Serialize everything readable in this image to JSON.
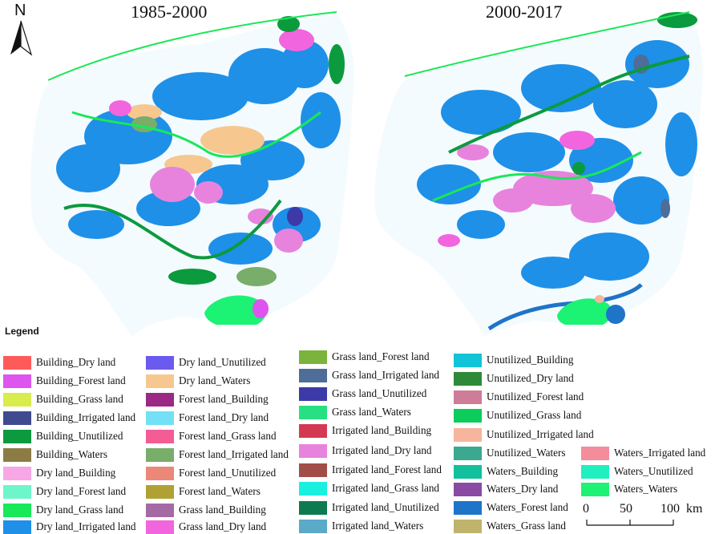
{
  "titles": {
    "left": "1985-2000",
    "right": "2000-2017"
  },
  "north": "N",
  "legend": {
    "title": "Legend",
    "items": [
      {
        "label": "Building_Dry land",
        "color": "#ff5a5a"
      },
      {
        "label": "Building_Forest land",
        "color": "#dd55ee"
      },
      {
        "label": "Building_Grass land",
        "color": "#d8ec4c"
      },
      {
        "label": "Building_Irrigated land",
        "color": "#3f4a8f"
      },
      {
        "label": "Building_Unutilized",
        "color": "#0c9a3e"
      },
      {
        "label": "Building_Waters",
        "color": "#8c7c44"
      },
      {
        "label": "Dry land_Building",
        "color": "#f7a7e4"
      },
      {
        "label": "Dry land_Forest land",
        "color": "#6ef5c9"
      },
      {
        "label": "Dry land_Grass land",
        "color": "#19e858"
      },
      {
        "label": "Dry land_Irrigated land",
        "color": "#1e90e8"
      },
      {
        "label": "Dry land_Unutilized",
        "color": "#6a5af0"
      },
      {
        "label": "Dry land_Waters",
        "color": "#f6c890"
      },
      {
        "label": "Forest land_Building",
        "color": "#9a2a86"
      },
      {
        "label": "Forest land_Dry land",
        "color": "#72e0f5"
      },
      {
        "label": "Forest land_Grass land",
        "color": "#f45c96"
      },
      {
        "label": "Forest land_Irrigated land",
        "color": "#78ad6a"
      },
      {
        "label": "Forest land_Unutilized",
        "color": "#ec8878"
      },
      {
        "label": "Forest land_Waters",
        "color": "#b0a232"
      },
      {
        "label": "Grass land_Building",
        "color": "#a56aa6"
      },
      {
        "label": "Grass land_Dry land",
        "color": "#f265de"
      },
      {
        "label": "Grass land_Forest land",
        "color": "#7ab43c"
      },
      {
        "label": "Grass land_Irrigated land",
        "color": "#4e6d98"
      },
      {
        "label": "Grass land_Unutilized",
        "color": "#3b3aa8"
      },
      {
        "label": "Grass land_Waters",
        "color": "#28e082"
      },
      {
        "label": "Irrigated land_Building",
        "color": "#d33a52"
      },
      {
        "label": "Irrigated land_Dry land",
        "color": "#e783dd"
      },
      {
        "label": "Irrigated land_Forest land",
        "color": "#a24e48"
      },
      {
        "label": "Irrigated land_Grass land",
        "color": "#19f0e0"
      },
      {
        "label": "Irrigated land_Unutilized",
        "color": "#0e7a50"
      },
      {
        "label": "Irrigated land_Waters",
        "color": "#5aaac8"
      },
      {
        "label": "Unutilized_Building",
        "color": "#12c4d8"
      },
      {
        "label": "Unutilized_Dry land",
        "color": "#2e8a36"
      },
      {
        "label": "Unutilized_Forest land",
        "color": "#cf7c98"
      },
      {
        "label": "Unutilized_Grass land",
        "color": "#0ccc5c"
      },
      {
        "label": "Unutilized_Irrigated land",
        "color": "#f6b59c"
      },
      {
        "label": "Unutilized_Waters",
        "color": "#3ba890"
      },
      {
        "label": "Waters_Building",
        "color": "#12c09c"
      },
      {
        "label": "Waters_Dry land",
        "color": "#8a4aa4"
      },
      {
        "label": "Waters_Forest land",
        "color": "#1e74c8"
      },
      {
        "label": "Waters_Grass land",
        "color": "#c0b46c"
      },
      {
        "label": "Waters_Irrigated land",
        "color": "#f58c9c"
      },
      {
        "label": "Waters_Unutilized",
        "color": "#20f0c0"
      },
      {
        "label": "Waters_Waters",
        "color": "#1cf274"
      }
    ]
  },
  "scale_bar": {
    "ticks": [
      "0",
      "50",
      "100"
    ],
    "unit": "km"
  }
}
